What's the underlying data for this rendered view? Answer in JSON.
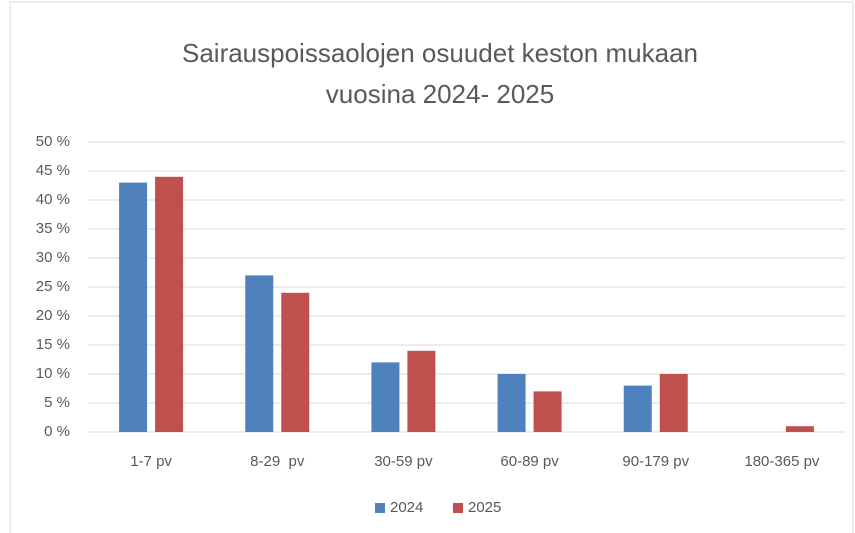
{
  "chart_data": {
    "type": "bar",
    "title": [
      "Sairauspoissaolojen osuudet keston mukaan",
      "vuosina 2024- 2025"
    ],
    "categories": [
      "1-7 pv",
      "8-29  pv",
      "30-59 pv",
      "60-89 pv",
      "90-179 pv",
      "180-365 pv"
    ],
    "series": [
      {
        "name": "2024",
        "color": "#4f81bd",
        "values": [
          43,
          27,
          12,
          10,
          8,
          0
        ]
      },
      {
        "name": "2025",
        "color": "#c0504d",
        "values": [
          44,
          24,
          14,
          7,
          10,
          1
        ]
      }
    ],
    "ylim": [
      0,
      50
    ],
    "yticks": [
      {
        "value": 0,
        "label": "0 %"
      },
      {
        "value": 5,
        "label": "5 %"
      },
      {
        "value": 10,
        "label": "10 %"
      },
      {
        "value": 15,
        "label": "15 %"
      },
      {
        "value": 20,
        "label": "20 %"
      },
      {
        "value": 25,
        "label": "25 %"
      },
      {
        "value": 30,
        "label": "30 %"
      },
      {
        "value": 35,
        "label": "35 %"
      },
      {
        "value": 40,
        "label": "40 %"
      },
      {
        "value": 45,
        "label": "45 %"
      },
      {
        "value": 50,
        "label": "50 %"
      }
    ],
    "grid": true,
    "legend": "bottom"
  }
}
